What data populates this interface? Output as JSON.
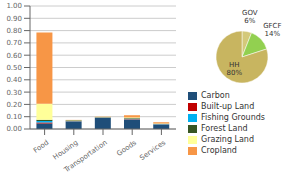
{
  "chart_data": [
    {
      "type": "bar",
      "stacked": true,
      "categories": [
        "Food",
        "Housing",
        "Transportation",
        "Goods",
        "Services"
      ],
      "series": [
        {
          "name": "Carbon",
          "color": "#1f4e79",
          "values": [
            0.045,
            0.06,
            0.09,
            0.075,
            0.035
          ]
        },
        {
          "name": "Built-up Land",
          "color": "#c00000",
          "values": [
            0.008,
            0.002,
            0.002,
            0.004,
            0.002
          ]
        },
        {
          "name": "Fishing Grounds",
          "color": "#00b0f0",
          "values": [
            0.012,
            0.002,
            0.002,
            0.004,
            0.003
          ]
        },
        {
          "name": "Forest Land",
          "color": "#375623",
          "values": [
            0.01,
            0.006,
            0.002,
            0.005,
            0.002
          ]
        },
        {
          "name": "Grazing Land",
          "color": "#ffff99",
          "values": [
            0.13,
            0.002,
            0.003,
            0.006,
            0.003
          ]
        },
        {
          "name": "Cropland",
          "color": "#f79646",
          "values": [
            0.58,
            0.002,
            0.002,
            0.018,
            0.01
          ]
        }
      ],
      "ylim": [
        0,
        1.0
      ],
      "yticks": [
        {
          "value": 0.0,
          "label": "0.00"
        },
        {
          "value": 0.1,
          "label": "0.10"
        },
        {
          "value": 0.2,
          "label": "0.20"
        },
        {
          "value": 0.3,
          "label": "0.30"
        },
        {
          "value": 0.4,
          "label": "0.40"
        },
        {
          "value": 0.5,
          "label": "0.50"
        },
        {
          "value": 0.6,
          "label": "0.60"
        },
        {
          "value": 0.7,
          "label": "0.70"
        },
        {
          "value": 0.8,
          "label": "0.80"
        },
        {
          "value": 0.9,
          "label": "0.90"
        },
        {
          "value": 1.0,
          "label": "1.00"
        }
      ],
      "grid": true,
      "legend": "right"
    },
    {
      "type": "pie",
      "categories": [
        "GOV",
        "GFCF",
        "HH"
      ],
      "values": [
        6,
        14,
        80
      ],
      "value_labels": [
        "6%",
        "14%",
        "80%"
      ],
      "colors": [
        "#d4c97a",
        "#92d050",
        "#c8b560"
      ],
      "data_labels": true
    }
  ]
}
